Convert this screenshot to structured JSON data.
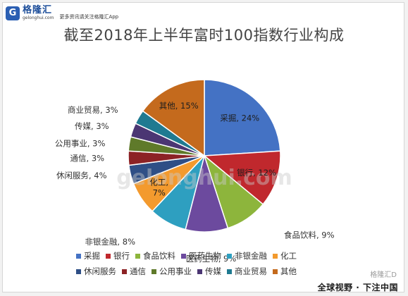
{
  "logo": {
    "mark": "G",
    "name": "格隆汇",
    "url": "gelonghui.com",
    "slogan": "更多资讯请关注格隆汇App"
  },
  "watermark": {
    "text": "gelonghui.com",
    "corner": "格隆汇D"
  },
  "footer": {
    "text": "全球视野 · 下注中国"
  },
  "chart_data": {
    "type": "pie",
    "title": "截至2018年上半年富时100指数行业构成",
    "slices": [
      {
        "name": "采掘",
        "value": 24,
        "label": "采掘, 24%",
        "color": "#4472c4"
      },
      {
        "name": "银行",
        "value": 12,
        "label": "银行, 12%",
        "color": "#c0282d"
      },
      {
        "name": "食品饮料",
        "value": 9,
        "label": "食品饮料, 9%",
        "color": "#8db53c"
      },
      {
        "name": "医药生物",
        "value": 9,
        "label": "医药生物, 9%",
        "color": "#6c4a9e"
      },
      {
        "name": "非银金融",
        "value": 8,
        "label": "非银金融, 8%",
        "color": "#2e9fc0"
      },
      {
        "name": "化工",
        "value": 7,
        "label": "化工, 7%",
        "color": "#f39a2e"
      },
      {
        "name": "休闲服务",
        "value": 4,
        "label": "休闲服务, 4%",
        "color": "#2f4f86"
      },
      {
        "name": "通信",
        "value": 3,
        "label": "通信, 3%",
        "color": "#8c2225"
      },
      {
        "name": "公用事业",
        "value": 3,
        "label": "公用事业, 3%",
        "color": "#5f7a2a"
      },
      {
        "name": "传媒",
        "value": 3,
        "label": "传媒, 3%",
        "color": "#4b3673"
      },
      {
        "name": "商业贸易",
        "value": 3,
        "label": "商业贸易, 3%",
        "color": "#1f7a91"
      },
      {
        "name": "其他",
        "value": 15,
        "label": "其他, 15%",
        "color": "#c46a1d"
      }
    ],
    "legend_position": "bottom"
  }
}
